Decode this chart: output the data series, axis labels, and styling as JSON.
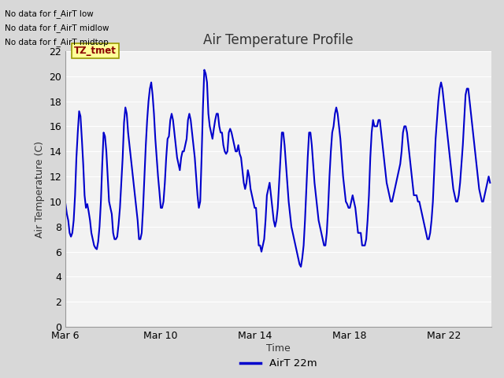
{
  "title": "Air Temperature Profile",
  "xlabel": "Time",
  "ylabel": "Air Temperature (C)",
  "ylim": [
    0,
    22
  ],
  "yticks": [
    0,
    2,
    4,
    6,
    8,
    10,
    12,
    14,
    16,
    18,
    20,
    22
  ],
  "line_color": "#0000CC",
  "line_width": 1.5,
  "legend_label": "AirT 22m",
  "bg_color": "#D8D8D8",
  "plot_bg_color": "#F2F2F2",
  "grid_color": "#FFFFFF",
  "no_data_texts": [
    "No data for f_AirT low",
    "No data for f_AirT midlow",
    "No data for f_AirT midtop"
  ],
  "tz_label": "TZ_tmet",
  "x_tick_labels": [
    "Mar 6",
    "Mar 10",
    "Mar 14",
    "Mar 18",
    "Mar 22"
  ],
  "x_tick_offsets_days": [
    0,
    4,
    8,
    12,
    16
  ],
  "temperature_values": [
    9.8,
    9.0,
    8.5,
    7.5,
    7.2,
    7.5,
    8.5,
    10.5,
    13.5,
    15.5,
    17.2,
    16.8,
    15.0,
    13.0,
    10.5,
    9.5,
    9.8,
    9.2,
    8.5,
    7.5,
    7.0,
    6.5,
    6.3,
    6.2,
    6.8,
    8.0,
    10.0,
    13.0,
    15.5,
    15.2,
    14.0,
    12.0,
    10.0,
    9.5,
    9.0,
    7.5,
    7.0,
    7.0,
    7.2,
    8.2,
    9.5,
    11.5,
    13.5,
    16.3,
    17.5,
    17.0,
    15.5,
    14.5,
    13.5,
    12.5,
    11.5,
    10.5,
    9.5,
    8.5,
    7.0,
    7.0,
    7.5,
    9.5,
    12.0,
    14.5,
    16.5,
    18.0,
    19.0,
    19.5,
    18.5,
    17.0,
    15.0,
    13.5,
    12.0,
    10.8,
    9.5,
    9.5,
    10.0,
    11.5,
    13.5,
    15.0,
    15.2,
    16.5,
    17.0,
    16.5,
    15.5,
    14.5,
    13.5,
    13.0,
    12.5,
    13.5,
    14.0,
    14.0,
    14.5,
    15.0,
    16.5,
    17.0,
    16.5,
    15.5,
    14.5,
    13.5,
    12.0,
    10.5,
    9.5,
    10.0,
    13.5,
    17.5,
    20.5,
    20.2,
    19.5,
    17.0,
    16.0,
    15.5,
    15.0,
    15.8,
    16.5,
    17.0,
    17.0,
    16.0,
    15.5,
    15.5,
    14.5,
    14.0,
    13.8,
    14.0,
    15.5,
    15.8,
    15.5,
    15.0,
    14.5,
    14.0,
    14.0,
    14.5,
    13.8,
    13.5,
    12.5,
    11.5,
    11.0,
    11.5,
    12.5,
    12.0,
    11.0,
    10.5,
    10.0,
    9.5,
    9.5,
    8.0,
    6.5,
    6.5,
    6.0,
    6.5,
    7.0,
    8.5,
    10.5,
    11.0,
    11.5,
    10.5,
    9.5,
    8.5,
    8.0,
    8.5,
    9.5,
    11.5,
    13.5,
    15.5,
    15.5,
    14.5,
    13.0,
    11.5,
    10.0,
    9.0,
    8.0,
    7.5,
    7.0,
    6.5,
    6.0,
    5.5,
    5.0,
    4.8,
    5.5,
    6.5,
    8.5,
    11.0,
    13.5,
    15.5,
    15.5,
    14.5,
    13.0,
    11.5,
    10.5,
    9.5,
    8.5,
    8.0,
    7.5,
    7.0,
    6.5,
    6.5,
    7.5,
    9.5,
    12.0,
    14.0,
    15.5,
    16.0,
    17.0,
    17.5,
    17.0,
    16.0,
    15.0,
    13.5,
    12.0,
    11.0,
    10.0,
    9.8,
    9.5,
    9.5,
    10.0,
    10.5,
    10.0,
    9.5,
    8.5,
    7.5,
    7.5,
    7.5,
    6.5,
    6.5,
    6.5,
    7.0,
    8.5,
    10.5,
    13.5,
    15.5,
    16.5,
    16.0,
    16.0,
    16.0,
    16.5,
    16.5,
    15.5,
    14.5,
    13.5,
    12.5,
    11.5,
    11.0,
    10.5,
    10.0,
    10.0,
    10.5,
    11.0,
    11.5,
    12.0,
    12.5,
    13.0,
    14.0,
    15.5,
    16.0,
    16.0,
    15.5,
    14.5,
    13.5,
    12.5,
    11.5,
    10.5,
    10.5,
    10.5,
    10.0,
    10.0,
    9.5,
    9.0,
    8.5,
    8.0,
    7.5,
    7.0,
    7.0,
    7.5,
    8.5,
    10.0,
    12.5,
    15.0,
    16.5,
    18.0,
    19.0,
    19.5,
    19.0,
    18.0,
    17.0,
    16.0,
    15.0,
    14.0,
    13.0,
    12.0,
    11.0,
    10.5,
    10.0,
    10.0,
    10.5,
    11.5,
    13.0,
    14.5,
    16.5,
    18.5,
    19.0,
    19.0,
    18.0,
    17.0,
    16.0,
    15.0,
    14.0,
    13.0,
    12.0,
    11.0,
    10.5,
    10.0,
    10.0,
    10.5,
    11.0,
    11.5,
    12.0,
    11.5
  ]
}
